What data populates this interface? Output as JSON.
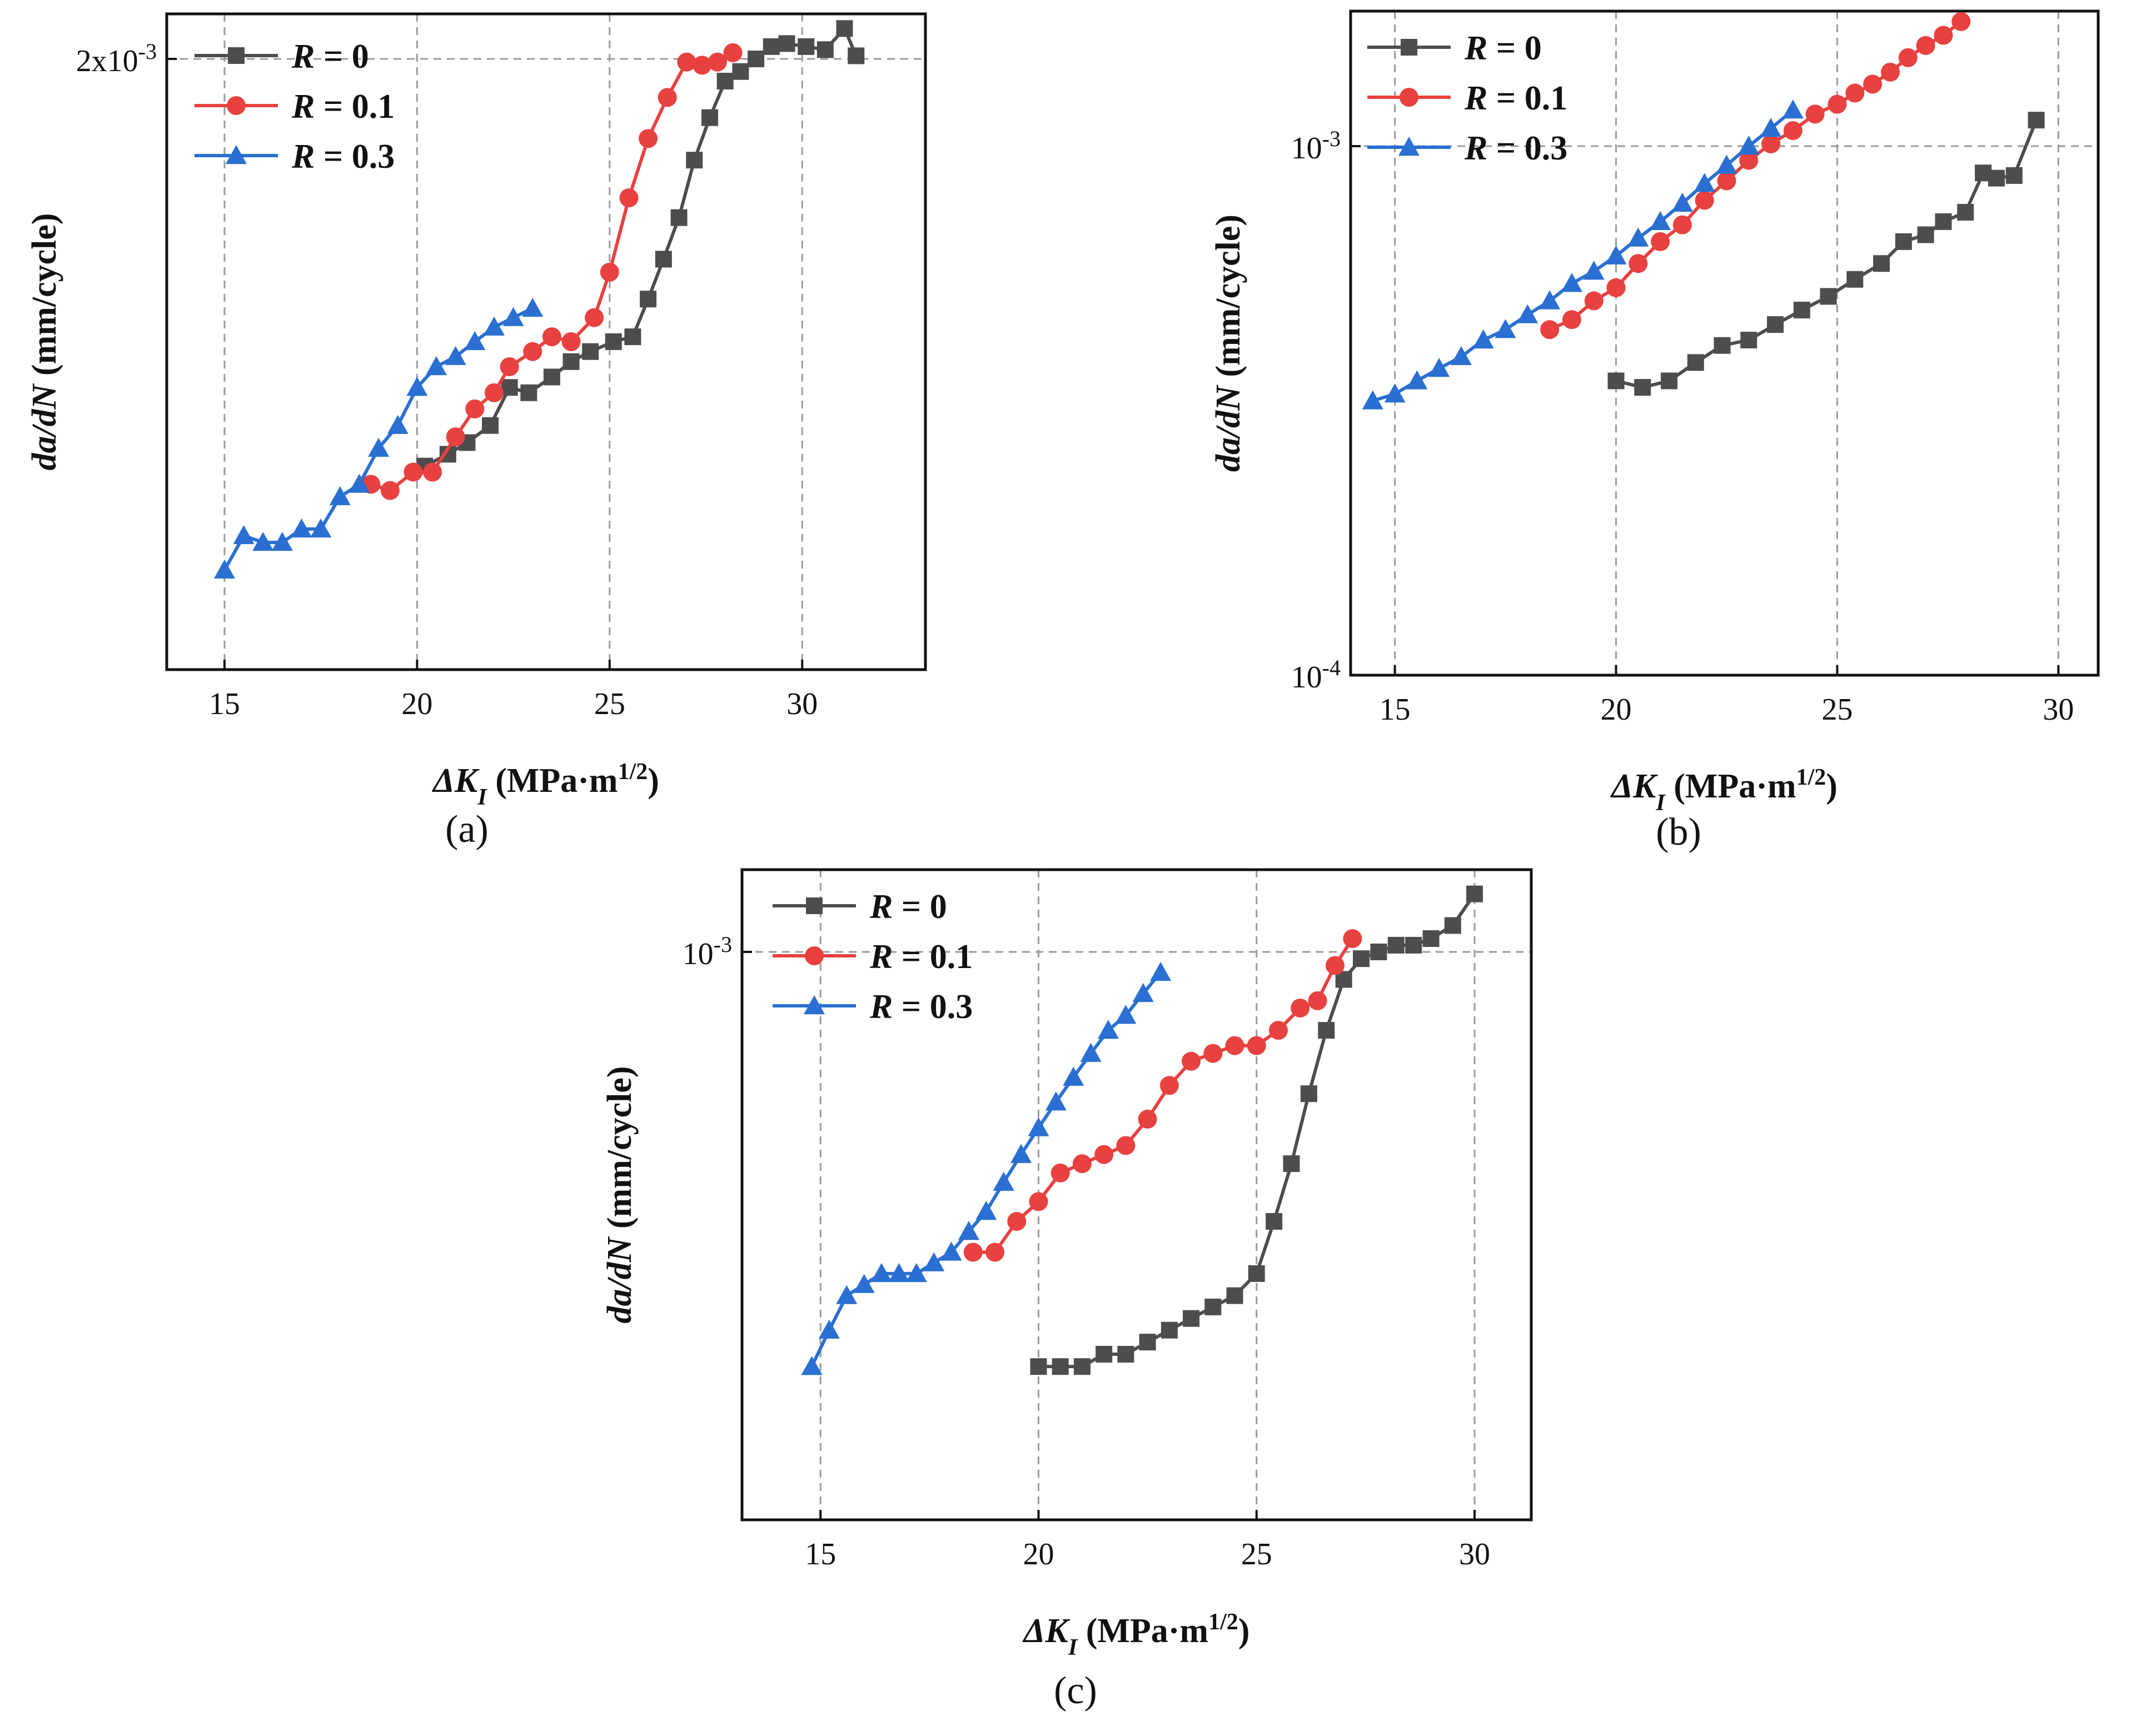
{
  "colors": {
    "R0": "#4d4d4d",
    "R01": "#e8413f",
    "R03": "#2a6fd1",
    "axis": "#111111",
    "grid": "#9a9a9a"
  },
  "chart_data": [
    {
      "id": "a",
      "type": "line",
      "panel_label": "(a)",
      "ylabel": "da/dN (mm/cycle)",
      "xlabel": "ΔK_I (MPa·m^(1/2))",
      "xlim": [
        13.5,
        33.2
      ],
      "yscale": "log",
      "ylim": [
        0.00075,
        0.00215
      ],
      "xticks": [
        15,
        20,
        25,
        30
      ],
      "yticks": [
        {
          "value": 0.002,
          "label": "2x10-3",
          "base": "2x10",
          "exp": "-3"
        }
      ],
      "series": [
        {
          "name": "R = 0",
          "marker": "square",
          "x": [
            20.2,
            20.8,
            21.3,
            21.9,
            22.4,
            22.9,
            23.5,
            24.0,
            24.5,
            25.1,
            25.6,
            26.0,
            26.4,
            26.8,
            27.2,
            27.6,
            28.0,
            28.4,
            28.8,
            29.2,
            29.6,
            30.1,
            30.6,
            31.1,
            31.4
          ],
          "y": [
            0.00104,
            0.00106,
            0.00108,
            0.00111,
            0.00118,
            0.00117,
            0.0012,
            0.00123,
            0.00125,
            0.00127,
            0.00128,
            0.00136,
            0.00145,
            0.00155,
            0.0017,
            0.00182,
            0.00193,
            0.00196,
            0.002,
            0.00204,
            0.00205,
            0.00204,
            0.00203,
            0.0021,
            0.00201
          ]
        },
        {
          "name": "R = 0.1",
          "marker": "circle",
          "x": [
            18.8,
            19.3,
            19.9,
            20.4,
            21.0,
            21.5,
            22.0,
            22.4,
            23.0,
            23.5,
            24.0,
            24.6,
            25.0,
            25.5,
            26.0,
            26.5,
            27.0,
            27.4,
            27.8,
            28.2
          ],
          "y": [
            0.00101,
            0.001,
            0.00103,
            0.00103,
            0.00109,
            0.00114,
            0.00117,
            0.00122,
            0.00125,
            0.00128,
            0.00127,
            0.00132,
            0.00142,
            0.0016,
            0.00176,
            0.00188,
            0.00199,
            0.00198,
            0.00199,
            0.00202
          ]
        },
        {
          "name": "R = 0.3",
          "marker": "triangle",
          "x": [
            15.0,
            15.5,
            16.0,
            16.5,
            17.0,
            17.5,
            18.0,
            18.5,
            19.0,
            19.5,
            20.0,
            20.5,
            21.0,
            21.5,
            22.0,
            22.5,
            23.0
          ],
          "y": [
            0.00088,
            0.00093,
            0.00092,
            0.00092,
            0.00094,
            0.00094,
            0.00099,
            0.00101,
            0.00107,
            0.00111,
            0.00118,
            0.00122,
            0.00124,
            0.00127,
            0.0013,
            0.00132,
            0.00134
          ]
        }
      ]
    },
    {
      "id": "b",
      "type": "line",
      "panel_label": "(b)",
      "ylabel": "da/dN (mm/cycle)",
      "xlabel": "ΔK_I (MPa·m^(1/2))",
      "xlim": [
        14.0,
        30.9
      ],
      "yscale": "log",
      "ylim": [
        0.0001,
        0.0018
      ],
      "xticks": [
        15,
        20,
        25,
        30
      ],
      "yticks": [
        {
          "value": 0.001,
          "label": "10-3",
          "base": "10",
          "exp": "-3"
        },
        {
          "value": 0.0001,
          "label": "10-4",
          "base": "10",
          "exp": "-4"
        }
      ],
      "series": [
        {
          "name": "R = 0",
          "marker": "square",
          "x": [
            20.0,
            20.6,
            21.2,
            21.8,
            22.4,
            23.0,
            23.6,
            24.2,
            24.8,
            25.4,
            26.0,
            26.5,
            27.0,
            27.4,
            27.9,
            28.3,
            28.6,
            29.0,
            29.5
          ],
          "y": [
            0.00036,
            0.00035,
            0.00036,
            0.00039,
            0.00042,
            0.00043,
            0.00046,
            0.00049,
            0.00052,
            0.00056,
            0.0006,
            0.00066,
            0.00068,
            0.00072,
            0.00075,
            0.00089,
            0.00087,
            0.00088,
            0.00112
          ]
        },
        {
          "name": "R = 0.1",
          "marker": "circle",
          "x": [
            18.5,
            19.0,
            19.5,
            20.0,
            20.5,
            21.0,
            21.5,
            22.0,
            22.5,
            23.0,
            23.5,
            24.0,
            24.5,
            25.0,
            25.4,
            25.8,
            26.2,
            26.6,
            27.0,
            27.4,
            27.8
          ],
          "y": [
            0.00045,
            0.00047,
            0.00051,
            0.00054,
            0.0006,
            0.00066,
            0.00071,
            0.00079,
            0.00086,
            0.00094,
            0.00101,
            0.00107,
            0.00115,
            0.0012,
            0.00126,
            0.00131,
            0.00138,
            0.00147,
            0.00155,
            0.00162,
            0.00172
          ]
        },
        {
          "name": "R = 0.3",
          "marker": "triangle",
          "x": [
            14.5,
            15.0,
            15.5,
            16.0,
            16.5,
            17.0,
            17.5,
            18.0,
            18.5,
            19.0,
            19.5,
            20.0,
            20.5,
            21.0,
            21.5,
            22.0,
            22.5,
            23.0,
            23.5,
            24.0
          ],
          "y": [
            0.00033,
            0.00034,
            0.00036,
            0.00038,
            0.0004,
            0.00043,
            0.00045,
            0.00048,
            0.00051,
            0.00055,
            0.00058,
            0.00062,
            0.00067,
            0.00072,
            0.00078,
            0.00085,
            0.00092,
            0.001,
            0.00108,
            0.00117
          ]
        }
      ]
    },
    {
      "id": "c",
      "type": "line",
      "panel_label": "(c)",
      "ylabel": "da/dN (mm/cycle)",
      "xlabel": "ΔK_I (MPa·m^(1/2))",
      "xlim": [
        13.2,
        31.3
      ],
      "yscale": "log",
      "ylim": [
        0.00043,
        0.00113
      ],
      "xticks": [
        15,
        20,
        25,
        30
      ],
      "yticks": [
        {
          "value": 0.001,
          "label": "10-3",
          "base": "10",
          "exp": "-3"
        }
      ],
      "series": [
        {
          "name": "R = 0",
          "marker": "square",
          "x": [
            20.0,
            20.5,
            21.0,
            21.5,
            22.0,
            22.5,
            23.0,
            23.5,
            24.0,
            24.5,
            25.0,
            25.4,
            25.8,
            26.2,
            26.6,
            27.0,
            27.4,
            27.8,
            28.2,
            28.6,
            29.0,
            29.5,
            30.0
          ],
          "y": [
            0.00054,
            0.00054,
            0.00054,
            0.00055,
            0.00055,
            0.00056,
            0.00057,
            0.00058,
            0.00059,
            0.0006,
            0.00062,
            0.00067,
            0.00073,
            0.00081,
            0.00089,
            0.00096,
            0.00099,
            0.001,
            0.00101,
            0.00101,
            0.00102,
            0.00104,
            0.00109
          ]
        },
        {
          "name": "R = 0.1",
          "marker": "circle",
          "x": [
            18.5,
            19.0,
            19.5,
            20.0,
            20.5,
            21.0,
            21.5,
            22.0,
            22.5,
            23.0,
            23.5,
            24.0,
            24.5,
            25.0,
            25.5,
            26.0,
            26.4,
            26.8,
            27.2
          ],
          "y": [
            0.00064,
            0.00064,
            0.00067,
            0.00069,
            0.00072,
            0.00073,
            0.00074,
            0.00075,
            0.00078,
            0.00082,
            0.00085,
            0.00086,
            0.00087,
            0.00087,
            0.00089,
            0.00092,
            0.00093,
            0.00098,
            0.00102
          ]
        },
        {
          "name": "R = 0.3",
          "marker": "triangle",
          "x": [
            14.8,
            15.2,
            15.6,
            16.0,
            16.4,
            16.8,
            17.2,
            17.6,
            18.0,
            18.4,
            18.8,
            19.2,
            19.6,
            20.0,
            20.4,
            20.8,
            21.2,
            21.6,
            22.0,
            22.4,
            22.8
          ],
          "y": [
            0.00054,
            0.00057,
            0.0006,
            0.00061,
            0.00062,
            0.00062,
            0.00062,
            0.00063,
            0.00064,
            0.00066,
            0.00068,
            0.00071,
            0.00074,
            0.00077,
            0.0008,
            0.00083,
            0.00086,
            0.00089,
            0.00091,
            0.00094,
            0.00097
          ]
        }
      ]
    }
  ]
}
